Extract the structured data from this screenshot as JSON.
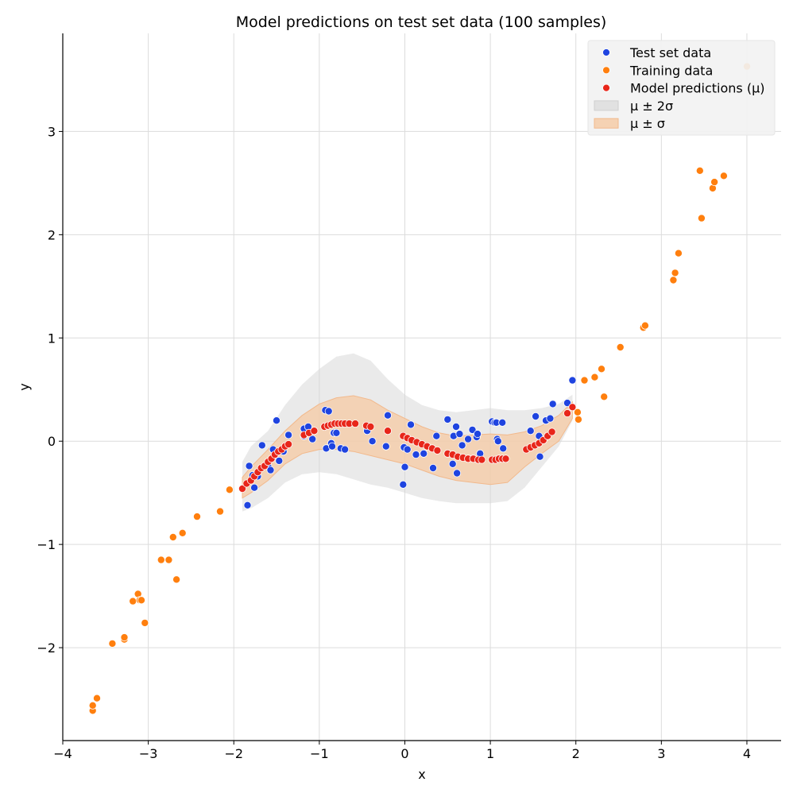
{
  "chart_data": {
    "type": "scatter",
    "title": "Model predictions on test set data (100 samples)",
    "xlabel": "x",
    "ylabel": "y",
    "xlim": [
      -4.0,
      4.4
    ],
    "ylim": [
      -2.9,
      3.95
    ],
    "xticks": [
      -4,
      -3,
      -2,
      -1,
      0,
      1,
      2,
      3,
      4
    ],
    "yticks": [
      -2,
      -1,
      0,
      1,
      2,
      3
    ],
    "xtick_labels": [
      "−4",
      "−3",
      "−2",
      "−1",
      "0",
      "1",
      "2",
      "3",
      "4"
    ],
    "ytick_labels": [
      "−2",
      "−1",
      "0",
      "1",
      "2",
      "3"
    ],
    "grid": true,
    "legend_position": "top-right",
    "colors": {
      "test": "#1f44e0",
      "train": "#ff7f0e",
      "pred": "#e8261a",
      "band2": "#d5d5d5",
      "band1": "#f5c9a3"
    },
    "legend": [
      {
        "label": "Test set data",
        "kind": "dot",
        "color": "#1f44e0"
      },
      {
        "label": "Training data",
        "kind": "dot",
        "color": "#ff7f0e"
      },
      {
        "label": "Model predictions (μ)",
        "kind": "dot",
        "color": "#e8261a"
      },
      {
        "label": "μ ± 2σ",
        "kind": "patch",
        "color": "#d5d5d5"
      },
      {
        "label": "μ ± σ",
        "kind": "patch",
        "color": "#f5c9a3"
      }
    ],
    "series": [
      {
        "name": "Test set data",
        "points": [
          [
            -1.84,
            -0.62
          ],
          [
            -1.82,
            -0.24
          ],
          [
            -1.78,
            -0.33
          ],
          [
            -1.76,
            -0.45
          ],
          [
            -1.72,
            -0.34
          ],
          [
            -1.67,
            -0.04
          ],
          [
            -1.6,
            -0.24
          ],
          [
            -1.57,
            -0.28
          ],
          [
            -1.54,
            -0.08
          ],
          [
            -1.5,
            0.2
          ],
          [
            -1.47,
            -0.19
          ],
          [
            -1.42,
            -0.1
          ],
          [
            -1.36,
            0.06
          ],
          [
            -1.18,
            0.05
          ],
          [
            -1.18,
            0.12
          ],
          [
            -1.13,
            0.14
          ],
          [
            -1.08,
            0.02
          ],
          [
            -0.93,
            0.3
          ],
          [
            -0.92,
            -0.07
          ],
          [
            -0.89,
            0.29
          ],
          [
            -0.86,
            -0.02
          ],
          [
            -0.85,
            -0.05
          ],
          [
            -0.83,
            0.08
          ],
          [
            -0.8,
            0.08
          ],
          [
            -0.75,
            -0.07
          ],
          [
            -0.7,
            -0.08
          ],
          [
            -0.44,
            0.1
          ],
          [
            -0.38,
            0.0
          ],
          [
            -0.22,
            -0.05
          ],
          [
            -0.2,
            0.25
          ],
          [
            -0.02,
            -0.42
          ],
          [
            -0.01,
            -0.06
          ],
          [
            0.0,
            -0.25
          ],
          [
            0.03,
            -0.08
          ],
          [
            0.07,
            0.16
          ],
          [
            0.13,
            -0.13
          ],
          [
            0.22,
            -0.12
          ],
          [
            0.33,
            -0.26
          ],
          [
            0.37,
            0.05
          ],
          [
            0.5,
            0.21
          ],
          [
            0.56,
            -0.22
          ],
          [
            0.57,
            0.05
          ],
          [
            0.6,
            0.14
          ],
          [
            0.61,
            -0.31
          ],
          [
            0.64,
            0.07
          ],
          [
            0.67,
            -0.04
          ],
          [
            0.74,
            0.02
          ],
          [
            0.79,
            0.11
          ],
          [
            0.84,
            0.04
          ],
          [
            0.85,
            0.07
          ],
          [
            0.88,
            -0.12
          ],
          [
            1.02,
            0.19
          ],
          [
            1.05,
            0.18
          ],
          [
            1.07,
            0.18
          ],
          [
            1.08,
            0.02
          ],
          [
            1.09,
            0.0
          ],
          [
            1.14,
            0.18
          ],
          [
            1.15,
            -0.07
          ],
          [
            1.47,
            0.1
          ],
          [
            1.53,
            0.24
          ],
          [
            1.57,
            0.05
          ],
          [
            1.58,
            -0.15
          ],
          [
            1.65,
            0.2
          ],
          [
            1.7,
            0.22
          ],
          [
            1.73,
            0.36
          ],
          [
            1.9,
            0.37
          ],
          [
            1.96,
            0.59
          ]
        ]
      },
      {
        "name": "Training data",
        "points": [
          [
            -3.65,
            -2.61
          ],
          [
            -3.65,
            -2.56
          ],
          [
            -3.6,
            -2.49
          ],
          [
            -3.42,
            -1.96
          ],
          [
            -3.28,
            -1.92
          ],
          [
            -3.28,
            -1.9
          ],
          [
            -3.18,
            -1.55
          ],
          [
            -3.12,
            -1.48
          ],
          [
            -3.1,
            -1.54
          ],
          [
            -3.08,
            -1.54
          ],
          [
            -3.04,
            -1.76
          ],
          [
            -2.85,
            -1.15
          ],
          [
            -2.76,
            -1.15
          ],
          [
            -2.71,
            -0.93
          ],
          [
            -2.67,
            -1.34
          ],
          [
            -2.6,
            -0.89
          ],
          [
            -2.43,
            -0.73
          ],
          [
            -2.16,
            -0.68
          ],
          [
            -2.05,
            -0.47
          ],
          [
            2.02,
            0.28
          ],
          [
            2.03,
            0.21
          ],
          [
            2.1,
            0.59
          ],
          [
            2.22,
            0.62
          ],
          [
            2.3,
            0.7
          ],
          [
            2.33,
            0.43
          ],
          [
            2.52,
            0.91
          ],
          [
            2.79,
            1.1
          ],
          [
            2.81,
            1.12
          ],
          [
            3.14,
            1.56
          ],
          [
            3.16,
            1.63
          ],
          [
            3.2,
            1.82
          ],
          [
            3.45,
            2.62
          ],
          [
            3.47,
            2.16
          ],
          [
            3.6,
            2.45
          ],
          [
            3.62,
            2.51
          ],
          [
            3.73,
            2.57
          ],
          [
            4.0,
            3.63
          ]
        ]
      },
      {
        "name": "Model predictions (μ)",
        "points": [
          [
            -1.9,
            -0.46
          ],
          [
            -1.85,
            -0.41
          ],
          [
            -1.8,
            -0.38
          ],
          [
            -1.76,
            -0.34
          ],
          [
            -1.72,
            -0.3
          ],
          [
            -1.68,
            -0.26
          ],
          [
            -1.64,
            -0.24
          ],
          [
            -1.6,
            -0.2
          ],
          [
            -1.56,
            -0.17
          ],
          [
            -1.52,
            -0.13
          ],
          [
            -1.48,
            -0.1
          ],
          [
            -1.44,
            -0.08
          ],
          [
            -1.4,
            -0.05
          ],
          [
            -1.36,
            -0.03
          ],
          [
            -1.18,
            0.06
          ],
          [
            -1.12,
            0.08
          ],
          [
            -1.06,
            0.1
          ],
          [
            -0.94,
            0.14
          ],
          [
            -0.9,
            0.15
          ],
          [
            -0.86,
            0.16
          ],
          [
            -0.82,
            0.17
          ],
          [
            -0.78,
            0.17
          ],
          [
            -0.74,
            0.17
          ],
          [
            -0.7,
            0.17
          ],
          [
            -0.65,
            0.17
          ],
          [
            -0.58,
            0.17
          ],
          [
            -0.45,
            0.15
          ],
          [
            -0.4,
            0.14
          ],
          [
            -0.2,
            0.1
          ],
          [
            -0.02,
            0.05
          ],
          [
            0.03,
            0.03
          ],
          [
            0.08,
            0.01
          ],
          [
            0.14,
            -0.01
          ],
          [
            0.2,
            -0.03
          ],
          [
            0.26,
            -0.05
          ],
          [
            0.32,
            -0.07
          ],
          [
            0.38,
            -0.09
          ],
          [
            0.5,
            -0.12
          ],
          [
            0.56,
            -0.13
          ],
          [
            0.62,
            -0.15
          ],
          [
            0.68,
            -0.16
          ],
          [
            0.74,
            -0.17
          ],
          [
            0.8,
            -0.17
          ],
          [
            0.86,
            -0.18
          ],
          [
            0.9,
            -0.18
          ],
          [
            1.02,
            -0.18
          ],
          [
            1.06,
            -0.18
          ],
          [
            1.1,
            -0.17
          ],
          [
            1.14,
            -0.17
          ],
          [
            1.18,
            -0.17
          ],
          [
            1.42,
            -0.08
          ],
          [
            1.47,
            -0.06
          ],
          [
            1.52,
            -0.04
          ],
          [
            1.57,
            -0.02
          ],
          [
            1.62,
            0.01
          ],
          [
            1.67,
            0.05
          ],
          [
            1.72,
            0.09
          ],
          [
            1.9,
            0.27
          ],
          [
            1.96,
            0.33
          ]
        ]
      }
    ],
    "bands": [
      {
        "name": "μ ± 2σ",
        "x": [
          -1.9,
          -1.8,
          -1.6,
          -1.4,
          -1.2,
          -1.0,
          -0.8,
          -0.6,
          -0.4,
          -0.2,
          0.0,
          0.2,
          0.4,
          0.6,
          0.8,
          1.0,
          1.2,
          1.4,
          1.6,
          1.8,
          1.96
        ],
        "upper": [
          -0.2,
          -0.05,
          0.1,
          0.35,
          0.55,
          0.7,
          0.82,
          0.85,
          0.78,
          0.6,
          0.45,
          0.35,
          0.3,
          0.28,
          0.3,
          0.32,
          0.3,
          0.3,
          0.32,
          0.36,
          0.45
        ],
        "lower": [
          -0.68,
          -0.65,
          -0.55,
          -0.4,
          -0.32,
          -0.3,
          -0.32,
          -0.37,
          -0.42,
          -0.45,
          -0.5,
          -0.55,
          -0.58,
          -0.6,
          -0.6,
          -0.6,
          -0.58,
          -0.45,
          -0.25,
          -0.05,
          0.2
        ]
      },
      {
        "name": "μ ± σ",
        "x": [
          -1.9,
          -1.8,
          -1.6,
          -1.4,
          -1.2,
          -1.0,
          -0.8,
          -0.6,
          -0.4,
          -0.2,
          0.0,
          0.2,
          0.4,
          0.6,
          0.8,
          1.0,
          1.2,
          1.4,
          1.6,
          1.8,
          1.96
        ],
        "upper": [
          -0.35,
          -0.25,
          -0.08,
          0.1,
          0.25,
          0.36,
          0.42,
          0.44,
          0.4,
          0.3,
          0.22,
          0.14,
          0.08,
          0.05,
          0.06,
          0.07,
          0.06,
          0.09,
          0.15,
          0.25,
          0.38
        ],
        "lower": [
          -0.55,
          -0.5,
          -0.38,
          -0.22,
          -0.12,
          -0.08,
          -0.08,
          -0.1,
          -0.14,
          -0.18,
          -0.22,
          -0.28,
          -0.34,
          -0.38,
          -0.4,
          -0.42,
          -0.4,
          -0.25,
          -0.12,
          0.0,
          0.22
        ]
      }
    ]
  }
}
